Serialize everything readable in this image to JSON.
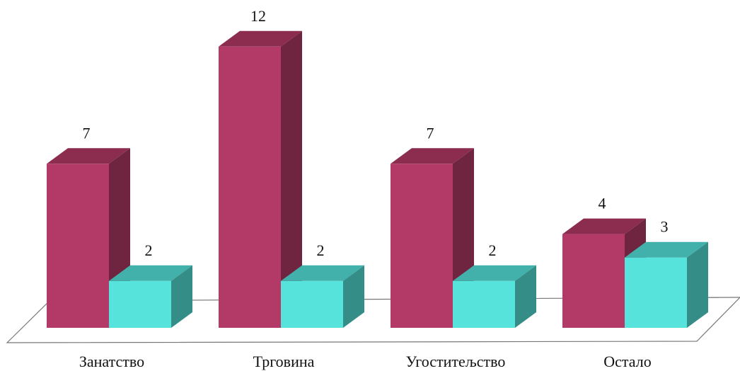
{
  "chart_data": {
    "type": "bar",
    "style": "3d-clustered-column",
    "categories": [
      "Занатство",
      "Трговина",
      "Угоститељство",
      "Остало"
    ],
    "series": [
      {
        "values": [
          7,
          12,
          7,
          4
        ],
        "color": "#B33A67"
      },
      {
        "values": [
          2,
          2,
          2,
          3
        ],
        "color": "#55E3DB"
      }
    ],
    "data_labels": true,
    "legend": "none",
    "grid": false,
    "ylim": [
      0,
      14
    ],
    "background": "#FFFFFF",
    "floor_color": "#FFFFFF"
  }
}
